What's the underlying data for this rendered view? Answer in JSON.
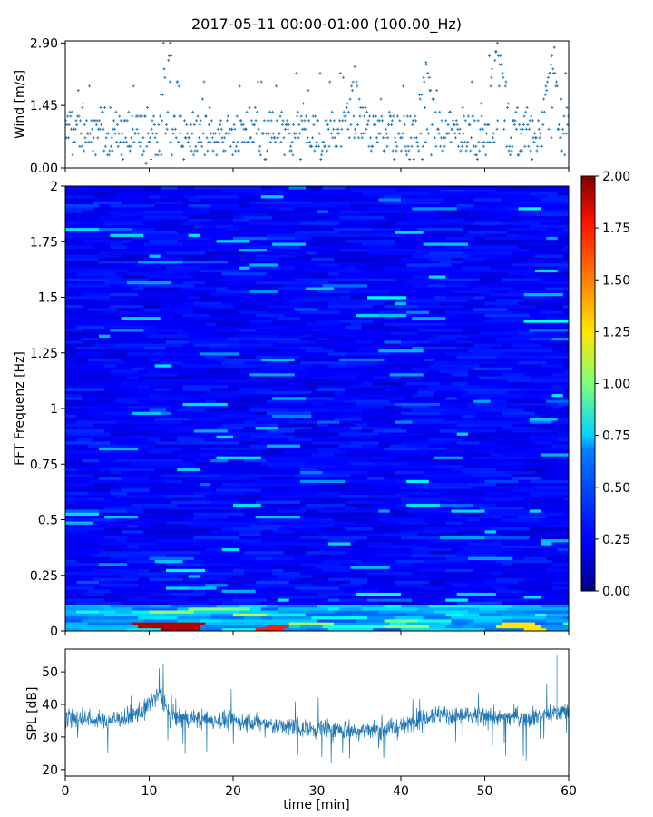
{
  "title": "2017-05-11 00:00-01:00 (100.00_Hz)",
  "chart_data": [
    {
      "type": "scatter",
      "panel": "wind",
      "ylabel": "Wind [m/s]",
      "xlabel": "",
      "xlim": [
        0,
        60
      ],
      "ylim": [
        0,
        2.95
      ],
      "y_ticks": [
        "0.00",
        "1.45",
        "2.90"
      ],
      "y_tick_values": [
        0,
        1.45,
        2.9
      ],
      "x_ticks_visible_labels": false,
      "marker": "+",
      "color": "#1f77b4",
      "sample_count": 720,
      "value_step": 0.1,
      "typical_range": [
        0.3,
        1.3
      ],
      "peaks": [
        {
          "x": 12.5,
          "y": 2.9
        },
        {
          "x": 34.5,
          "y": 2.35
        },
        {
          "x": 43.0,
          "y": 2.45
        },
        {
          "x": 51.5,
          "y": 2.9
        },
        {
          "x": 58.0,
          "y": 2.6
        }
      ]
    },
    {
      "type": "heatmap",
      "panel": "spectrogram",
      "ylabel": "FFT Frequenz [Hz]",
      "xlabel": "",
      "xlim": [
        0,
        60
      ],
      "ylim": [
        0,
        2
      ],
      "y_ticks": [
        "0",
        "0.25",
        "0.5",
        "0.75",
        "1",
        "1.25",
        "1.5",
        "1.75",
        "2"
      ],
      "y_tick_values": [
        0,
        0.25,
        0.5,
        0.75,
        1,
        1.25,
        1.5,
        1.75,
        2
      ],
      "colormap": "jet",
      "colorbar": {
        "vmin": 0,
        "vmax": 2,
        "ticks": [
          "0.00",
          "0.25",
          "0.50",
          "0.75",
          "1.00",
          "1.25",
          "1.50",
          "1.75",
          "2.00"
        ],
        "tick_values": [
          0,
          0.25,
          0.5,
          0.75,
          1.0,
          1.25,
          1.5,
          1.75,
          2.0
        ]
      },
      "typical_value": 0.25,
      "high_low_freq_regions": [
        {
          "x_range": [
            7.5,
            13
          ],
          "freq": 0.01,
          "value": 1.9
        },
        {
          "x_range": [
            22,
            24
          ],
          "freq": 0.01,
          "value": 1.7
        },
        {
          "x_range": [
            51,
            55
          ],
          "freq": 0.02,
          "value": 1.3
        }
      ]
    },
    {
      "type": "line",
      "panel": "spl",
      "ylabel": "SPL [dB]",
      "xlabel": "time [min]",
      "xlim": [
        0,
        60
      ],
      "ylim": [
        18,
        57
      ],
      "x_ticks": [
        "0",
        "10",
        "20",
        "30",
        "40",
        "50",
        "60"
      ],
      "x_tick_values": [
        0,
        10,
        20,
        30,
        40,
        50,
        60
      ],
      "y_ticks": [
        "20",
        "30",
        "40",
        "50"
      ],
      "y_tick_values": [
        20,
        30,
        40,
        50
      ],
      "color": "#1f77b4",
      "envelope": [
        {
          "x": 0,
          "mean": 36,
          "spread": 4
        },
        {
          "x": 5,
          "mean": 35,
          "spread": 4
        },
        {
          "x": 9,
          "mean": 37,
          "spread": 4
        },
        {
          "x": 10.5,
          "mean": 42,
          "spread": 5
        },
        {
          "x": 11.5,
          "mean": 43,
          "spread": 5
        },
        {
          "x": 12.5,
          "mean": 36,
          "spread": 4
        },
        {
          "x": 20,
          "mean": 35,
          "spread": 4
        },
        {
          "x": 27,
          "mean": 33,
          "spread": 4
        },
        {
          "x": 35,
          "mean": 32,
          "spread": 4
        },
        {
          "x": 40,
          "mean": 33,
          "spread": 4
        },
        {
          "x": 43.5,
          "mean": 37,
          "spread": 4
        },
        {
          "x": 50,
          "mean": 36,
          "spread": 4
        },
        {
          "x": 55,
          "mean": 36,
          "spread": 4
        },
        {
          "x": 60,
          "mean": 38,
          "spread": 4
        }
      ],
      "spike": {
        "x": 58.6,
        "y": 55
      }
    }
  ]
}
